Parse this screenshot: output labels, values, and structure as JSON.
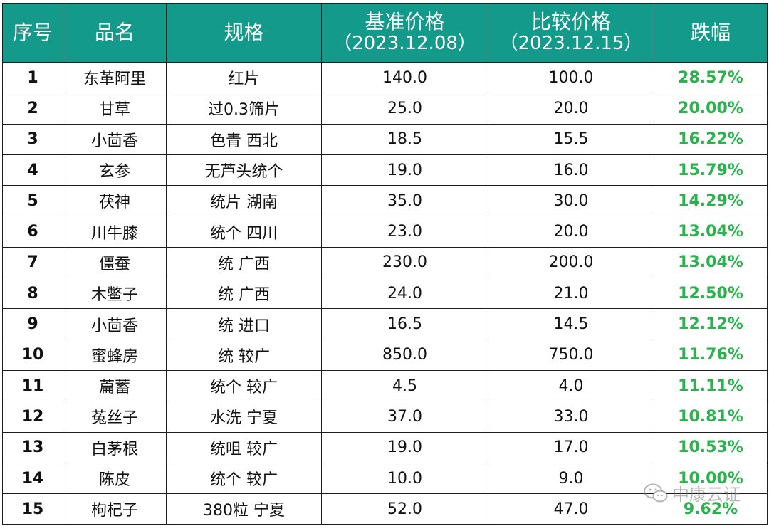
{
  "header": {
    "idx": "序号",
    "name": "品名",
    "spec": "规格",
    "base_title": "基准价格",
    "base_date": "（2023.12.08）",
    "cmp_title": "比较价格",
    "cmp_date": "（2023.12.15）",
    "change": "跌幅"
  },
  "rows": [
    {
      "idx": "1",
      "name": "东革阿里",
      "spec": "红片",
      "base": "140.0",
      "cmp": "100.0",
      "change": "28.57%"
    },
    {
      "idx": "2",
      "name": "甘草",
      "spec": "过0.3筛片",
      "base": "25.0",
      "cmp": "20.0",
      "change": "20.00%"
    },
    {
      "idx": "3",
      "name": "小茴香",
      "spec": "色青 西北",
      "base": "18.5",
      "cmp": "15.5",
      "change": "16.22%"
    },
    {
      "idx": "4",
      "name": "玄参",
      "spec": "无芦头统个",
      "base": "19.0",
      "cmp": "16.0",
      "change": "15.79%"
    },
    {
      "idx": "5",
      "name": "茯神",
      "spec": "统片 湖南",
      "base": "35.0",
      "cmp": "30.0",
      "change": "14.29%"
    },
    {
      "idx": "6",
      "name": "川牛膝",
      "spec": "统个 四川",
      "base": "23.0",
      "cmp": "20.0",
      "change": "13.04%"
    },
    {
      "idx": "7",
      "name": "僵蚕",
      "spec": "统 广西",
      "base": "230.0",
      "cmp": "200.0",
      "change": "13.04%"
    },
    {
      "idx": "8",
      "name": "木鳖子",
      "spec": "统 广西",
      "base": "24.0",
      "cmp": "21.0",
      "change": "12.50%"
    },
    {
      "idx": "9",
      "name": "小茴香",
      "spec": "统 进口",
      "base": "16.5",
      "cmp": "14.5",
      "change": "12.12%"
    },
    {
      "idx": "10",
      "name": "蜜蜂房",
      "spec": "统 较广",
      "base": "850.0",
      "cmp": "750.0",
      "change": "11.76%"
    },
    {
      "idx": "11",
      "name": "萹蓄",
      "spec": "统个 较广",
      "base": "4.5",
      "cmp": "4.0",
      "change": "11.11%"
    },
    {
      "idx": "12",
      "name": "菟丝子",
      "spec": "水洗 宁夏",
      "base": "37.0",
      "cmp": "33.0",
      "change": "10.81%"
    },
    {
      "idx": "13",
      "name": "白茅根",
      "spec": "统咀 较广",
      "base": "19.0",
      "cmp": "17.0",
      "change": "10.53%"
    },
    {
      "idx": "14",
      "name": "陈皮",
      "spec": "统个 较广",
      "base": "10.0",
      "cmp": "9.0",
      "change": "10.00%"
    },
    {
      "idx": "15",
      "name": "枸杞子",
      "spec": "380粒 宁夏",
      "base": "52.0",
      "cmp": "47.0",
      "change": "9.62%"
    }
  ],
  "watermark": {
    "text": "中康云证",
    "icon": "wechat-icon"
  },
  "colors": {
    "header_bg": "#139a8b",
    "header_text": "#ffffff",
    "change_text": "#2bb24c",
    "border": "#1d1d1d"
  }
}
